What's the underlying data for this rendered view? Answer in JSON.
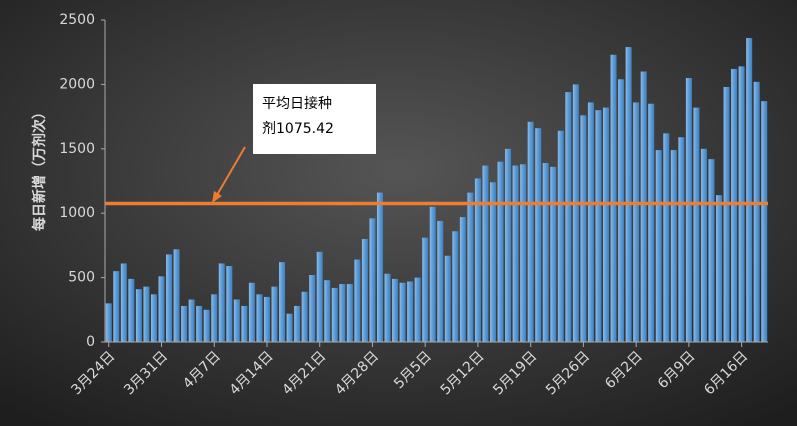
{
  "chart_data": {
    "type": "bar",
    "y_label": "每日新增（万剂次）",
    "categories": [
      "3月24日",
      null,
      null,
      null,
      null,
      null,
      null,
      "3月31日",
      null,
      null,
      null,
      null,
      null,
      null,
      "4月7日",
      null,
      null,
      null,
      null,
      null,
      null,
      "4月14日",
      null,
      null,
      null,
      null,
      null,
      null,
      "4月21日",
      null,
      null,
      null,
      null,
      null,
      null,
      "4月28日",
      null,
      null,
      null,
      null,
      null,
      null,
      "5月5日",
      null,
      null,
      null,
      null,
      null,
      null,
      "5月12日",
      null,
      null,
      null,
      null,
      null,
      null,
      "5月19日",
      null,
      null,
      null,
      null,
      null,
      null,
      "5月26日",
      null,
      null,
      null,
      null,
      null,
      null,
      "6月2日",
      null,
      null,
      null,
      null,
      null,
      null,
      "6月9日",
      null,
      null,
      null,
      null,
      null,
      null,
      "6月16日",
      null,
      null,
      null
    ],
    "values": [
      300,
      550,
      610,
      490,
      410,
      430,
      370,
      510,
      680,
      720,
      280,
      330,
      280,
      250,
      370,
      610,
      590,
      330,
      280,
      460,
      370,
      350,
      430,
      620,
      220,
      280,
      390,
      520,
      700,
      480,
      420,
      450,
      450,
      640,
      800,
      960,
      1160,
      530,
      490,
      460,
      470,
      500,
      810,
      1050,
      940,
      670,
      860,
      970,
      1160,
      1270,
      1370,
      1240,
      1400,
      1500,
      1370,
      1380,
      1710,
      1660,
      1390,
      1360,
      1640,
      1940,
      2000,
      1760,
      1860,
      1800,
      1820,
      2230,
      2040,
      2290,
      1860,
      2100,
      1850,
      1490,
      1620,
      1490,
      1590,
      2050,
      1820,
      1500,
      1420,
      1140,
      1980,
      2120,
      2140,
      2360,
      2020,
      1870
    ],
    "color": "#5b9bd5",
    "ylim": [
      0,
      2500
    ],
    "yticks": [
      0,
      500,
      1000,
      1500,
      2000,
      2500
    ],
    "reference_line": {
      "value": 1075.42,
      "color": "#ed7d31",
      "label_lines": [
        "平均日接种",
        "剂1075.42"
      ]
    }
  }
}
